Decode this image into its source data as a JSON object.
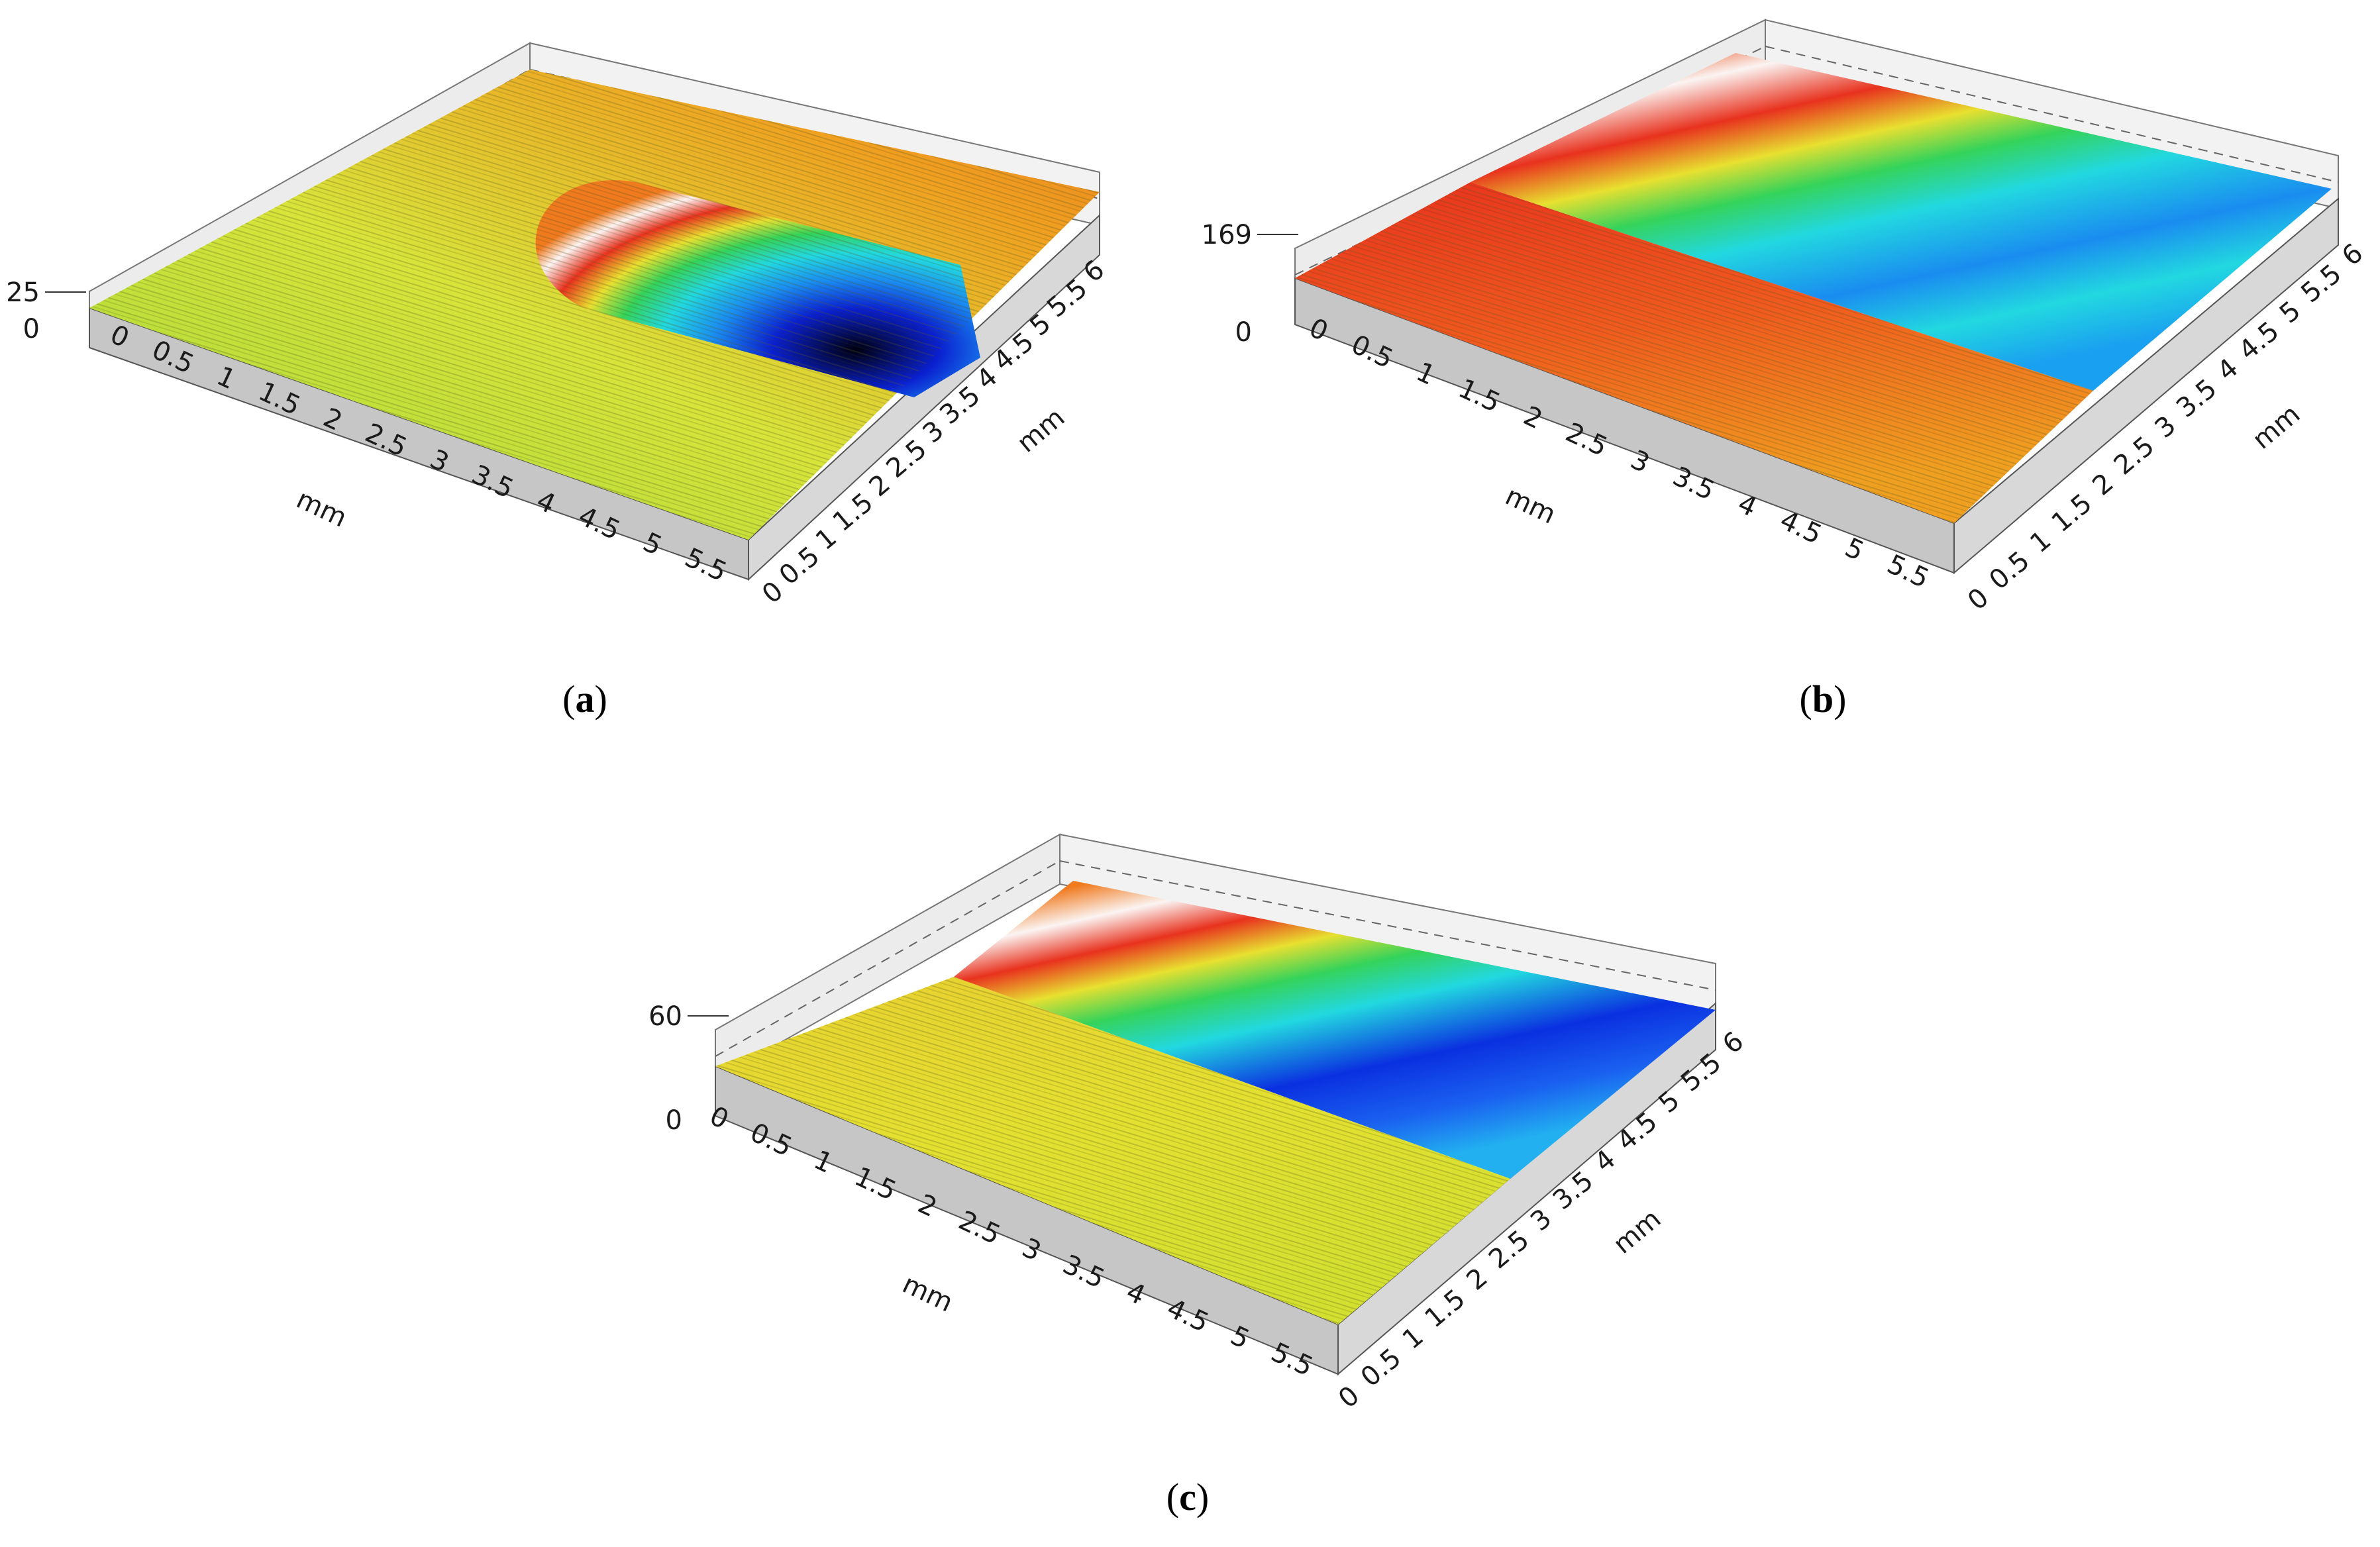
{
  "figure": {
    "panels": [
      {
        "id": "a",
        "caption_open": "(",
        "caption_letter": "a",
        "caption_close": ")",
        "z_ticks": [
          "0",
          "25"
        ],
        "x_ticks": [
          "0",
          "0.5",
          "1",
          "1.5",
          "2",
          "2.5",
          "3",
          "3.5",
          "4",
          "4.5",
          "5",
          "5.5"
        ],
        "y_ticks": [
          "0",
          "0.5",
          "1",
          "1.5",
          "2",
          "2.5",
          "3",
          "3.5",
          "4",
          "4.5",
          "5",
          "5.5",
          "6"
        ],
        "x_unit": "mm",
        "y_unit": "mm",
        "feature": "pocket"
      },
      {
        "id": "b",
        "caption_open": "(",
        "caption_letter": "b",
        "caption_close": ")",
        "z_ticks": [
          "0",
          "169"
        ],
        "x_ticks": [
          "0",
          "0.5",
          "1",
          "1.5",
          "2",
          "2.5",
          "3",
          "3.5",
          "4",
          "4.5",
          "5",
          "5.5"
        ],
        "y_ticks": [
          "0",
          "0.5",
          "1",
          "1.5",
          "2",
          "2.5",
          "3",
          "3.5",
          "4",
          "4.5",
          "5",
          "5.5",
          "6"
        ],
        "x_unit": "mm",
        "y_unit": "mm",
        "feature": "groove"
      },
      {
        "id": "c",
        "caption_open": "(",
        "caption_letter": "c",
        "caption_close": ")",
        "z_ticks": [
          "0",
          "60"
        ],
        "x_ticks": [
          "0",
          "0.5",
          "1",
          "1.5",
          "2",
          "2.5",
          "3",
          "3.5",
          "4",
          "4.5",
          "5",
          "5.5"
        ],
        "y_ticks": [
          "0",
          "0.5",
          "1",
          "1.5",
          "2",
          "2.5",
          "3",
          "3.5",
          "4",
          "4.5",
          "5",
          "5.5",
          "6"
        ],
        "x_unit": "mm",
        "y_unit": "mm",
        "feature": "groove"
      }
    ],
    "colors": {
      "surface_yellow": "#d8e43a",
      "surface_orange": "#f07a1e",
      "surface_red": "#e8321e",
      "band_white": "#fbf4f2",
      "band_green": "#35d35a",
      "band_cyan": "#22d8e0",
      "band_blue": "#1040e8",
      "band_black": "#000010",
      "side_grey": "#c6c6c6",
      "wall_grey": "#e6e6e6"
    }
  }
}
